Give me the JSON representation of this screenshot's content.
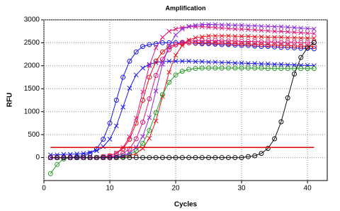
{
  "chart_data": {
    "type": "line",
    "title": "Amplification",
    "x_label": "Cycles",
    "y_label": "RFU",
    "x": [
      1,
      2,
      3,
      4,
      5,
      6,
      7,
      8,
      9,
      10,
      11,
      12,
      13,
      14,
      15,
      16,
      17,
      18,
      19,
      20,
      21,
      22,
      23,
      24,
      25,
      26,
      27,
      28,
      29,
      30,
      31,
      32,
      33,
      34,
      35,
      36,
      37,
      38,
      39,
      40,
      41
    ],
    "xlim": [
      0,
      43
    ],
    "xticks": [
      0,
      10,
      20,
      30,
      40
    ],
    "ylim": [
      -500,
      3000
    ],
    "yticks": [
      0,
      500,
      1000,
      1500,
      2000,
      2500,
      3000
    ],
    "grid": true,
    "threshold": {
      "value": 220,
      "color": "#e00000"
    },
    "series": [
      {
        "color": "#1a1ae6",
        "marker": "circle",
        "values": [
          0,
          0,
          0,
          0,
          20,
          40,
          90,
          190,
          400,
          750,
          1250,
          1750,
          2100,
          2300,
          2420,
          2460,
          2480,
          2500,
          2500,
          2500,
          2500,
          2500,
          2490,
          2480,
          2480,
          2470,
          2460,
          2460,
          2450,
          2440,
          2440,
          2430,
          2420,
          2420,
          2410,
          2400,
          2400,
          2390,
          2380,
          2380,
          2370
        ]
      },
      {
        "color": "#1a1ae6",
        "marker": "x",
        "values": [
          60,
          60,
          70,
          70,
          80,
          90,
          110,
          150,
          240,
          400,
          690,
          1100,
          1510,
          1800,
          1950,
          2030,
          2070,
          2090,
          2100,
          2100,
          2100,
          2100,
          2090,
          2090,
          2080,
          2080,
          2070,
          2070,
          2060,
          2060,
          2050,
          2050,
          2040,
          2040,
          2030,
          2030,
          2020,
          2020,
          2010,
          2010,
          2000
        ]
      },
      {
        "color": "#e8141e",
        "marker": "circle",
        "values": [
          0,
          0,
          0,
          0,
          0,
          0,
          0,
          0,
          20,
          40,
          90,
          190,
          400,
          750,
          1250,
          1750,
          2100,
          2300,
          2420,
          2460,
          2480,
          2500,
          2500,
          2500,
          2500,
          2490,
          2490,
          2480,
          2480,
          2470,
          2470,
          2460,
          2460,
          2450,
          2450,
          2440,
          2440,
          2430,
          2430,
          2420,
          2420
        ]
      },
      {
        "color": "#e0187a",
        "marker": "x",
        "values": [
          0,
          0,
          0,
          0,
          0,
          0,
          0,
          0,
          20,
          40,
          100,
          220,
          450,
          860,
          1430,
          2000,
          2390,
          2620,
          2750,
          2800,
          2830,
          2850,
          2850,
          2850,
          2840,
          2830,
          2820,
          2810,
          2800,
          2800,
          2790,
          2780,
          2770,
          2760,
          2750,
          2750,
          2740,
          2730,
          2720,
          2710,
          2700
        ]
      },
      {
        "color": "#e8141e",
        "marker": "x",
        "values": [
          0,
          0,
          0,
          0,
          0,
          0,
          0,
          0,
          0,
          0,
          0,
          20,
          40,
          90,
          200,
          420,
          800,
          1330,
          1860,
          2230,
          2440,
          2560,
          2610,
          2630,
          2650,
          2650,
          2650,
          2650,
          2640,
          2640,
          2640,
          2630,
          2630,
          2620,
          2620,
          2620,
          2610,
          2610,
          2600,
          2600,
          2600
        ]
      },
      {
        "color": "#e0187a",
        "marker": "circle",
        "values": [
          0,
          0,
          0,
          0,
          0,
          0,
          0,
          0,
          0,
          20,
          40,
          90,
          190,
          410,
          770,
          1280,
          1790,
          2140,
          2350,
          2460,
          2510,
          2530,
          2550,
          2550,
          2550,
          2550,
          2540,
          2540,
          2540,
          2530,
          2530,
          2530,
          2520,
          2520,
          2520,
          2510,
          2510,
          2510,
          2500,
          2500,
          2500
        ]
      },
      {
        "color": "#2a9a2a",
        "marker": "circle",
        "values": [
          -350,
          -150,
          -30,
          0,
          0,
          0,
          0,
          0,
          0,
          0,
          10,
          30,
          70,
          150,
          310,
          590,
          980,
          1370,
          1640,
          1800,
          1880,
          1920,
          1940,
          1950,
          1950,
          1950,
          1950,
          1950,
          1950,
          1950,
          1950,
          1950,
          1950,
          1940,
          1940,
          1940,
          1940,
          1940,
          1940,
          1940,
          1940
        ]
      },
      {
        "color": "#8a2be2",
        "marker": "x",
        "values": [
          0,
          0,
          0,
          0,
          0,
          0,
          0,
          0,
          0,
          0,
          20,
          40,
          100,
          220,
          460,
          870,
          1450,
          2030,
          2440,
          2670,
          2800,
          2860,
          2880,
          2900,
          2900,
          2900,
          2890,
          2890,
          2880,
          2880,
          2870,
          2870,
          2860,
          2860,
          2850,
          2850,
          2840,
          2830,
          2820,
          2810,
          2800
        ]
      },
      {
        "color": "#111111",
        "marker": "circle",
        "values": [
          0,
          0,
          0,
          0,
          0,
          0,
          0,
          0,
          0,
          0,
          0,
          0,
          0,
          0,
          0,
          0,
          0,
          0,
          0,
          0,
          0,
          0,
          0,
          0,
          0,
          0,
          0,
          0,
          0,
          0,
          20,
          40,
          90,
          200,
          410,
          780,
          1300,
          1820,
          2180,
          2390,
          2510
        ]
      }
    ]
  }
}
